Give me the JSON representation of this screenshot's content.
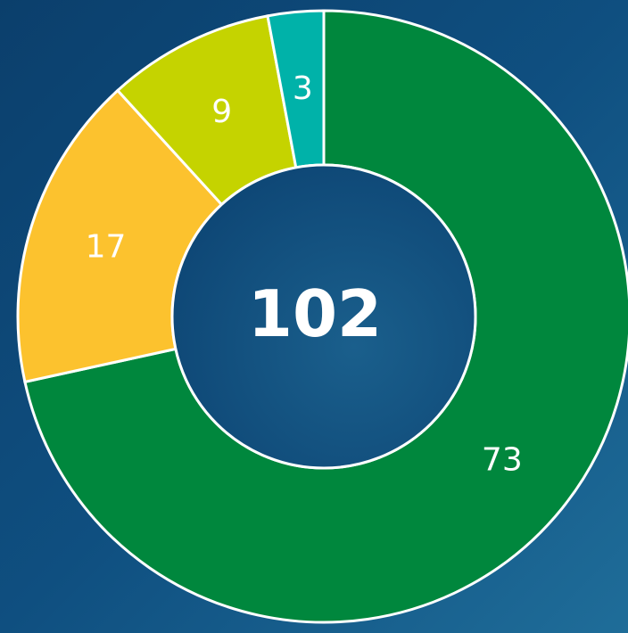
{
  "chart_data": {
    "type": "donut",
    "center_label": 102,
    "categories": [
      null,
      null,
      null,
      null
    ],
    "values": [
      73,
      17,
      9,
      3
    ],
    "colors": [
      "#00873d",
      "#fcc22e",
      "#c5d300",
      "#00b2a9"
    ],
    "start": "top",
    "direction": "clockwise"
  }
}
